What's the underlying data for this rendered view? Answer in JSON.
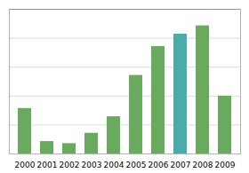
{
  "chart_data": {
    "type": "bar",
    "categories": [
      "2000",
      "2001",
      "2002",
      "2003",
      "2004",
      "2005",
      "2006",
      "2007",
      "2008",
      "2009"
    ],
    "values": [
      22,
      6,
      5,
      10,
      18,
      38,
      52,
      58,
      62,
      28
    ],
    "colors": [
      "#6aaa5e",
      "#6aaa5e",
      "#6aaa5e",
      "#6aaa5e",
      "#6aaa5e",
      "#6aaa5e",
      "#6aaa5e",
      "#4aacaa",
      "#6aaa5e",
      "#6aaa5e"
    ],
    "ylim": [
      0,
      70
    ],
    "yticks": [
      14,
      28,
      42,
      56,
      70
    ],
    "grid": true,
    "tick_labels": "x"
  }
}
